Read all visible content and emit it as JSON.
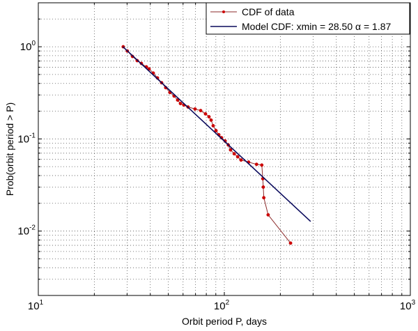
{
  "chart_data": {
    "type": "line",
    "title": "",
    "xlabel": "Orbit period P, days",
    "ylabel": "Prob(orbit period > P)",
    "xscale": "log",
    "yscale": "log",
    "xlim": [
      10,
      1000
    ],
    "ylim": [
      0.002,
      3
    ],
    "grid": true,
    "legend_position": "upper right",
    "x_ticks": [
      {
        "base": "10",
        "exp": "1",
        "value": 10
      },
      {
        "base": "10",
        "exp": "2",
        "value": 100
      },
      {
        "base": "10",
        "exp": "3",
        "value": 1000
      }
    ],
    "y_ticks": [
      {
        "base": "10",
        "exp": "0",
        "value": 1
      },
      {
        "base": "10",
        "exp": "-1",
        "value": 0.1
      },
      {
        "base": "10",
        "exp": "-2",
        "value": 0.01
      }
    ],
    "series": [
      {
        "name": "CDF of data",
        "legend_label": "CDF of data",
        "line_color": "#8b2a2a",
        "marker_color": "#cc0000",
        "marker": "dot",
        "x": [
          28.6,
          30.1,
          32.1,
          34.0,
          35.8,
          38.1,
          39.4,
          41.5,
          43.7,
          46.0,
          48.4,
          51.0,
          53.7,
          56.1,
          58.1,
          60.6,
          63.8,
          69.6,
          74.6,
          79.2,
          82.7,
          84.9,
          87.1,
          90.2,
          93.4,
          96.6,
          101,
          105,
          108,
          113,
          118,
          123,
          135,
          149,
          159,
          161,
          162,
          163,
          172,
          227
        ],
        "y": [
          1.0,
          0.9,
          0.785,
          0.707,
          0.66,
          0.605,
          0.575,
          0.518,
          0.459,
          0.407,
          0.36,
          0.319,
          0.292,
          0.264,
          0.242,
          0.233,
          0.222,
          0.211,
          0.203,
          0.187,
          0.174,
          0.16,
          0.139,
          0.123,
          0.111,
          0.103,
          0.095,
          0.086,
          0.076,
          0.069,
          0.064,
          0.059,
          0.056,
          0.053,
          0.052,
          0.037,
          0.03,
          0.023,
          0.015,
          0.0074
        ]
      },
      {
        "name": "Model CDF",
        "legend_label": "Model CDF: xmin = 28.50 α = 1.87",
        "line_color": "#0a0a5c",
        "marker": "none",
        "xmin": 28.5,
        "alpha": 1.87,
        "x": [
          28.5,
          291
        ],
        "y": [
          1.0,
          0.0127
        ]
      }
    ]
  },
  "legend": {
    "items": [
      {
        "label": "CDF of data"
      },
      {
        "label": "Model CDF: xmin = 28.50 α = 1.87"
      }
    ]
  }
}
